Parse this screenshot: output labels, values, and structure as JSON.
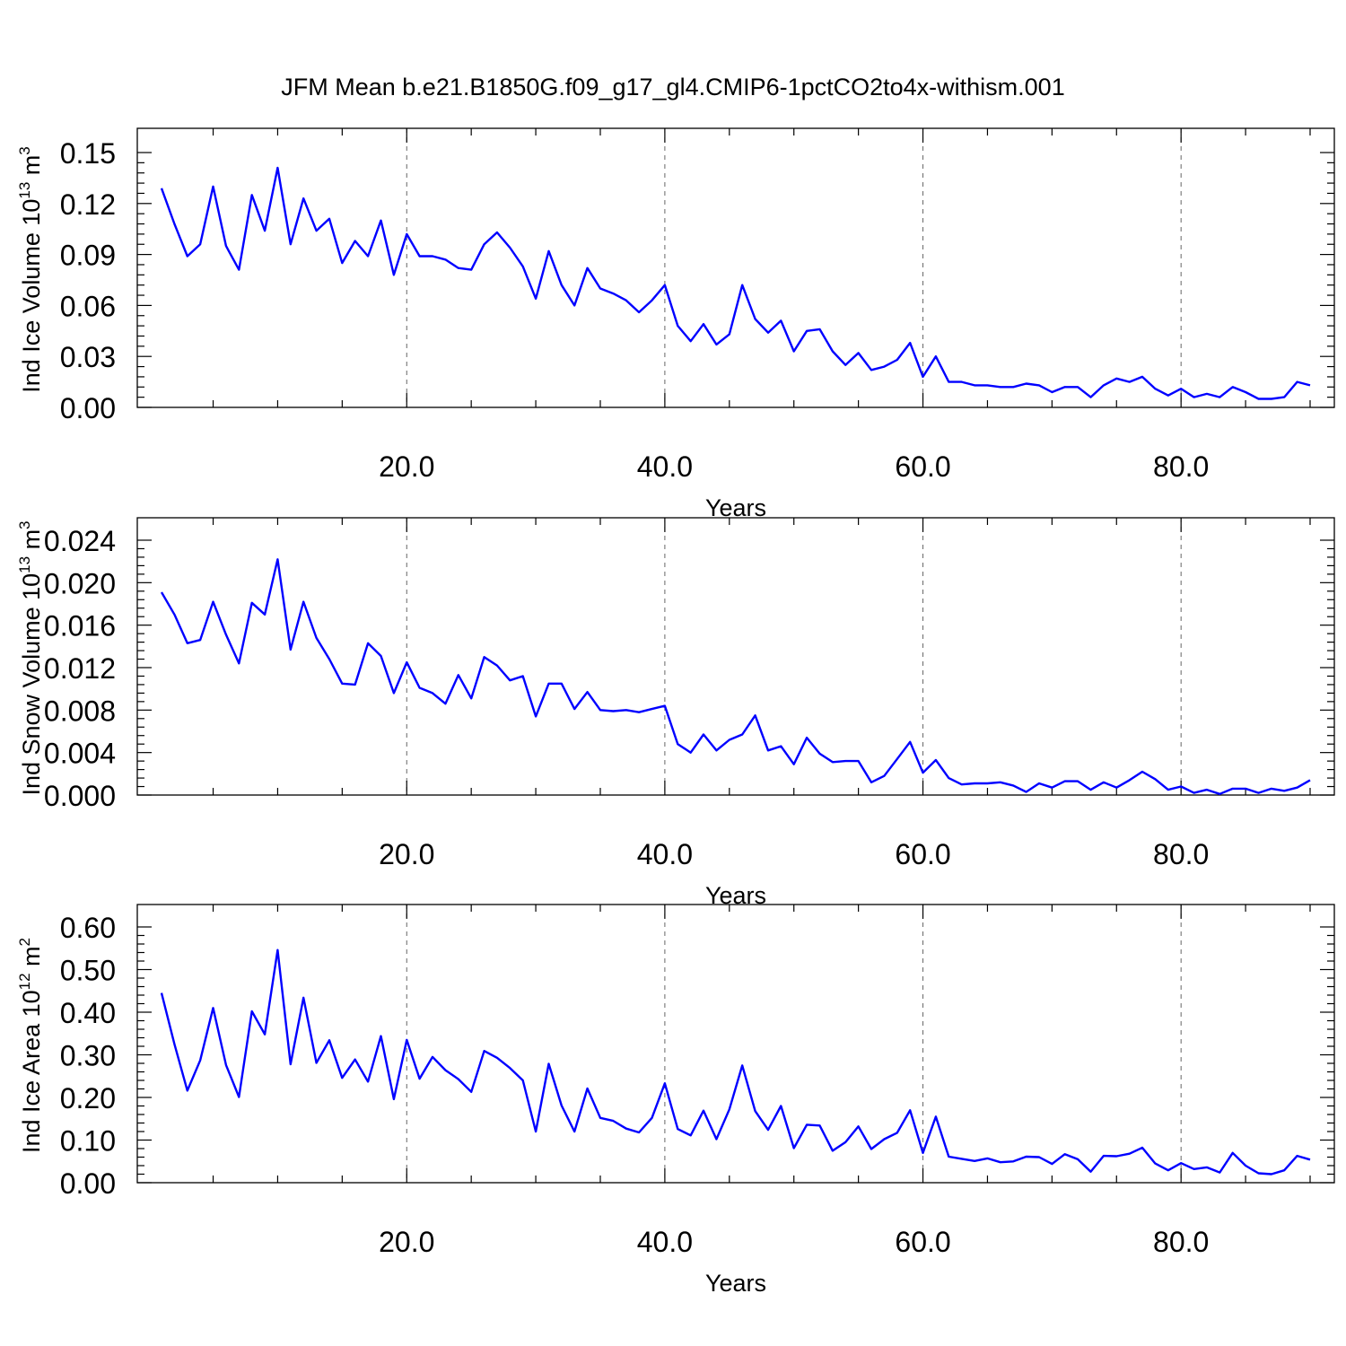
{
  "title": "JFM Mean b.e21.B1850G.f09_g17_gl4.CMIP6-1pctCO2to4x-withism.001",
  "colors": {
    "series": "#0000ff",
    "axis": "#000000",
    "grid": "#666666"
  },
  "chart_data": [
    {
      "type": "line",
      "xlabel": "Years",
      "ylabel_main": "Ind Ice Volume 10",
      "ylabel_exp": "13",
      "ylabel_unit": " m",
      "ylabel_unit_exp": "3",
      "xlim": [
        1,
        90
      ],
      "ylim": [
        0,
        0.15
      ],
      "x_ticks": [
        20,
        40,
        60,
        80
      ],
      "x_tick_labels": [
        "20.0",
        "40.0",
        "60.0",
        "80.0"
      ],
      "y_ticks": [
        0,
        0.03,
        0.06,
        0.09,
        0.12,
        0.15
      ],
      "y_tick_labels": [
        "0.00",
        "0.03",
        "0.06",
        "0.09",
        "0.12",
        "0.15"
      ],
      "grid": "vertical dashed at major x ticks",
      "values": [
        0.129,
        0.108,
        0.089,
        0.096,
        0.13,
        0.095,
        0.081,
        0.125,
        0.104,
        0.141,
        0.096,
        0.123,
        0.104,
        0.111,
        0.085,
        0.098,
        0.089,
        0.11,
        0.078,
        0.102,
        0.089,
        0.089,
        0.087,
        0.082,
        0.081,
        0.096,
        0.103,
        0.094,
        0.083,
        0.064,
        0.092,
        0.072,
        0.06,
        0.082,
        0.07,
        0.067,
        0.063,
        0.056,
        0.063,
        0.072,
        0.048,
        0.039,
        0.049,
        0.037,
        0.043,
        0.072,
        0.052,
        0.044,
        0.051,
        0.033,
        0.045,
        0.046,
        0.033,
        0.025,
        0.032,
        0.022,
        0.024,
        0.028,
        0.038,
        0.018,
        0.03,
        0.015,
        0.015,
        0.013,
        0.013,
        0.012,
        0.012,
        0.014,
        0.013,
        0.009,
        0.012,
        0.012,
        0.006,
        0.013,
        0.017,
        0.015,
        0.018,
        0.011,
        0.007,
        0.011,
        0.006,
        0.008,
        0.006,
        0.012,
        0.009,
        0.005,
        0.005,
        0.006,
        0.015,
        0.013
      ]
    },
    {
      "type": "line",
      "xlabel": "Years",
      "ylabel_main": "Ind Snow Volume 10",
      "ylabel_exp": "13",
      "ylabel_unit": " m",
      "ylabel_unit_exp": "3",
      "xlim": [
        1,
        90
      ],
      "ylim": [
        0,
        0.024
      ],
      "x_ticks": [
        20,
        40,
        60,
        80
      ],
      "x_tick_labels": [
        "20.0",
        "40.0",
        "60.0",
        "80.0"
      ],
      "y_ticks": [
        0,
        0.004,
        0.008,
        0.012,
        0.016,
        0.02,
        0.024
      ],
      "y_tick_labels": [
        "0.000",
        "0.004",
        "0.008",
        "0.012",
        "0.016",
        "0.020",
        "0.024"
      ],
      "grid": "vertical dashed at major x ticks",
      "values": [
        0.0191,
        0.017,
        0.0143,
        0.0146,
        0.0182,
        0.0151,
        0.0124,
        0.0181,
        0.017,
        0.0222,
        0.0137,
        0.0182,
        0.0148,
        0.0128,
        0.0105,
        0.0104,
        0.0143,
        0.0131,
        0.0096,
        0.0125,
        0.0101,
        0.0096,
        0.0086,
        0.0113,
        0.0091,
        0.013,
        0.0122,
        0.0108,
        0.0112,
        0.0074,
        0.0105,
        0.0105,
        0.0081,
        0.0097,
        0.008,
        0.0079,
        0.008,
        0.0078,
        0.0081,
        0.0084,
        0.0048,
        0.004,
        0.0057,
        0.0042,
        0.0052,
        0.0057,
        0.0075,
        0.0042,
        0.0046,
        0.0029,
        0.0054,
        0.0039,
        0.0031,
        0.0032,
        0.0032,
        0.0012,
        0.0018,
        0.0034,
        0.005,
        0.0021,
        0.0033,
        0.0016,
        0.001,
        0.0011,
        0.0011,
        0.0012,
        0.0009,
        0.0003,
        0.0011,
        0.0007,
        0.0013,
        0.0013,
        0.0005,
        0.0012,
        0.0007,
        0.0014,
        0.0022,
        0.0015,
        0.0005,
        0.0008,
        0.0002,
        0.0005,
        0.0001,
        0.0006,
        0.0006,
        0.0002,
        0.0006,
        0.0004,
        0.0007,
        0.0014
      ]
    },
    {
      "type": "line",
      "xlabel": "Years",
      "ylabel_main": "Ind Ice Area 10",
      "ylabel_exp": "12",
      "ylabel_unit": " m",
      "ylabel_unit_exp": "2",
      "xlim": [
        1,
        90
      ],
      "ylim": [
        0,
        0.6
      ],
      "x_ticks": [
        20,
        40,
        60,
        80
      ],
      "x_tick_labels": [
        "20.0",
        "40.0",
        "60.0",
        "80.0"
      ],
      "y_ticks": [
        0,
        0.1,
        0.2,
        0.3,
        0.4,
        0.5,
        0.6
      ],
      "y_tick_labels": [
        "0.00",
        "0.10",
        "0.20",
        "0.30",
        "0.40",
        "0.50",
        "0.60"
      ],
      "grid": "vertical dashed at major x ticks",
      "values": [
        0.445,
        0.325,
        0.216,
        0.287,
        0.41,
        0.276,
        0.201,
        0.402,
        0.348,
        0.546,
        0.278,
        0.434,
        0.281,
        0.334,
        0.246,
        0.289,
        0.237,
        0.344,
        0.196,
        0.335,
        0.244,
        0.295,
        0.264,
        0.243,
        0.213,
        0.309,
        0.293,
        0.269,
        0.24,
        0.12,
        0.279,
        0.181,
        0.12,
        0.221,
        0.152,
        0.145,
        0.127,
        0.118,
        0.152,
        0.233,
        0.126,
        0.111,
        0.169,
        0.102,
        0.172,
        0.275,
        0.168,
        0.124,
        0.18,
        0.081,
        0.136,
        0.134,
        0.075,
        0.095,
        0.132,
        0.079,
        0.102,
        0.117,
        0.17,
        0.07,
        0.155,
        0.061,
        0.056,
        0.051,
        0.057,
        0.048,
        0.05,
        0.061,
        0.06,
        0.044,
        0.067,
        0.055,
        0.026,
        0.063,
        0.062,
        0.068,
        0.082,
        0.045,
        0.029,
        0.046,
        0.032,
        0.036,
        0.024,
        0.07,
        0.04,
        0.022,
        0.02,
        0.029,
        0.063,
        0.054
      ]
    }
  ]
}
